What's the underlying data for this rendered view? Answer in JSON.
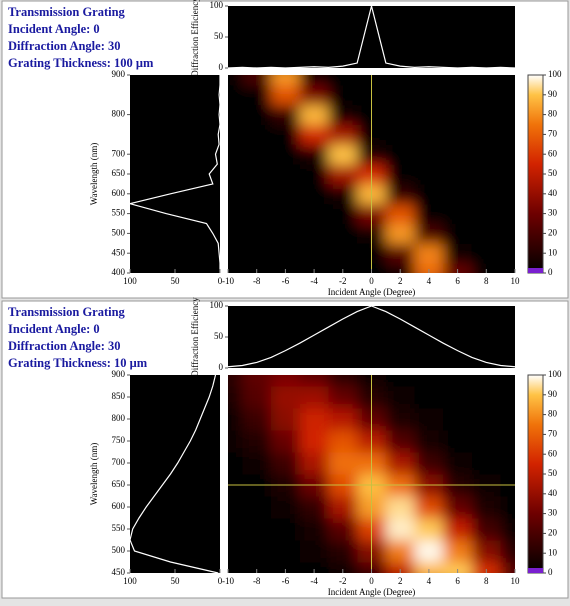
{
  "chart_data": [
    {
      "type": "heatmap",
      "annotations": [
        "Transmission Grating",
        "Incident Angle: 0",
        "Diffraction Angle: 30",
        "Grating Thickness: 100 μm"
      ],
      "xlabel": "Incident Angle (Degree)",
      "ylabel": "Wavelength (nm)",
      "x": [
        -10,
        -8,
        -6,
        -4,
        -2,
        0,
        2,
        4,
        6,
        8,
        10
      ],
      "y": [
        400,
        450,
        500,
        550,
        600,
        650,
        700,
        750,
        800,
        850,
        900
      ],
      "z": [
        [
          0,
          0,
          0,
          0,
          0,
          0,
          2,
          73,
          28,
          0,
          0
        ],
        [
          0,
          0,
          0,
          0,
          0,
          0,
          24,
          78,
          2,
          0,
          0
        ],
        [
          0,
          0,
          0,
          0,
          0,
          3,
          82,
          20,
          0,
          0,
          0
        ],
        [
          0,
          0,
          0,
          0,
          0,
          33,
          67,
          1,
          0,
          0,
          0
        ],
        [
          0,
          0,
          0,
          0,
          5,
          88,
          13,
          0,
          0,
          0,
          0
        ],
        [
          0,
          0,
          0,
          0,
          44,
          56,
          1,
          0,
          0,
          0,
          0
        ],
        [
          0,
          0,
          0,
          8,
          90,
          8,
          0,
          0,
          0,
          0,
          0
        ],
        [
          0,
          0,
          1,
          56,
          44,
          0,
          0,
          0,
          0,
          0,
          0
        ],
        [
          0,
          0,
          13,
          88,
          5,
          0,
          0,
          0,
          0,
          0,
          0
        ],
        [
          0,
          1,
          67,
          33,
          0,
          0,
          0,
          0,
          0,
          0,
          0
        ],
        [
          0,
          20,
          82,
          3,
          0,
          0,
          0,
          0,
          0,
          0,
          0
        ]
      ],
      "xlim": [
        -10,
        10
      ],
      "xticks": [
        -10,
        -8,
        -6,
        -4,
        -2,
        0,
        2,
        4,
        6,
        8,
        10
      ],
      "ylim": [
        400,
        900
      ],
      "yticks": [
        400,
        450,
        500,
        550,
        600,
        650,
        700,
        800,
        900
      ],
      "clim": [
        0,
        100
      ],
      "cticks": [
        0,
        10,
        20,
        30,
        40,
        50,
        60,
        70,
        80,
        90,
        100
      ],
      "crosshair_x": 0,
      "crosshair_color": "#c8c040",
      "top": {
        "ylabel": "Diffraction Efficiency",
        "color": "#ffffff",
        "x": [
          -10,
          -9,
          -8,
          -7,
          -6,
          -5,
          -4,
          -3,
          -2,
          -1,
          0,
          1,
          2,
          3,
          4,
          5,
          6,
          7,
          8,
          9,
          10
        ],
        "values": [
          0,
          1,
          0,
          1,
          0,
          1,
          2,
          1,
          3,
          8,
          100,
          8,
          3,
          1,
          2,
          1,
          0,
          1,
          0,
          1,
          0
        ],
        "ylim": [
          0,
          100
        ],
        "yticks": [
          0,
          50,
          100
        ]
      },
      "side": {
        "color": "#ffffff",
        "y": [
          400,
          425,
          450,
          475,
          500,
          525,
          550,
          575,
          600,
          625,
          650,
          675,
          700,
          725,
          750,
          775,
          800,
          825,
          850,
          875,
          900
        ],
        "values": [
          0,
          0,
          1,
          2,
          8,
          15,
          60,
          100,
          55,
          8,
          12,
          3,
          5,
          1,
          2,
          0,
          1,
          0,
          1,
          0,
          0
        ],
        "xlim": [
          100,
          0
        ],
        "xticks": [
          100,
          50,
          0
        ]
      }
    },
    {
      "type": "heatmap",
      "annotations": [
        "Transmission Grating",
        "Incident Angle: 0",
        "Diffraction Angle: 30",
        "Grating Thickness: 10 μm"
      ],
      "xlabel": "Incident Angle (Degree)",
      "ylabel": "Wavelength (nm)",
      "x": [
        -10,
        -8,
        -6,
        -4,
        -2,
        0,
        2,
        4,
        6,
        8,
        10
      ],
      "y": [
        450,
        500,
        550,
        600,
        650,
        700,
        750,
        800,
        850,
        900
      ],
      "z": [
        [
          0,
          0,
          0,
          0,
          4,
          17,
          50,
          87,
          91,
          58,
          23
        ],
        [
          0,
          0,
          0,
          2,
          10,
          36,
          77,
          99,
          77,
          36,
          10
        ],
        [
          0,
          0,
          1,
          6,
          24,
          62,
          97,
          91,
          52,
          18,
          4
        ],
        [
          0,
          0,
          3,
          14,
          45,
          83,
          94,
          65,
          27,
          7,
          1
        ],
        [
          0,
          1,
          8,
          29,
          65,
          89,
          74,
          37,
          11,
          2,
          0
        ],
        [
          0,
          4,
          17,
          45,
          74,
          74,
          45,
          17,
          4,
          0,
          0
        ],
        [
          2,
          9,
          28,
          55,
          67,
          49,
          22,
          6,
          1,
          0,
          0
        ],
        [
          4,
          16,
          37,
          54,
          48,
          26,
          8,
          2,
          0,
          0,
          0
        ],
        [
          8,
          23,
          40,
          42,
          27,
          11,
          3,
          0,
          0,
          0,
          0
        ],
        [
          12,
          26,
          33,
          26,
          12,
          3,
          1,
          0,
          0,
          0,
          0
        ]
      ],
      "xlim": [
        -10,
        10
      ],
      "xticks": [
        -10,
        -8,
        -6,
        -4,
        -2,
        0,
        2,
        4,
        6,
        8,
        10
      ],
      "ylim": [
        450,
        900
      ],
      "yticks": [
        450,
        500,
        550,
        600,
        650,
        700,
        750,
        800,
        850,
        900
      ],
      "clim": [
        0,
        100
      ],
      "cticks": [
        0,
        10,
        20,
        30,
        40,
        50,
        60,
        70,
        80,
        90,
        100
      ],
      "crosshair_x": 0,
      "crosshair_y": 650,
      "crosshair_color": "#c8c040",
      "top": {
        "ylabel": "Diffraction Efficiency",
        "color": "#ffffff",
        "x": [
          -10,
          -9,
          -8,
          -7,
          -6,
          -5,
          -4,
          -3,
          -2,
          -1,
          0,
          1,
          2,
          3,
          4,
          5,
          6,
          7,
          8,
          9,
          10
        ],
        "values": [
          2,
          4,
          9,
          17,
          28,
          40,
          53,
          66,
          79,
          91,
          100,
          91,
          79,
          66,
          53,
          40,
          28,
          17,
          9,
          4,
          2
        ],
        "ylim": [
          0,
          100
        ],
        "yticks": [
          0,
          50,
          100
        ]
      },
      "side": {
        "color": "#ffffff",
        "y": [
          450,
          475,
          500,
          525,
          550,
          575,
          600,
          625,
          650,
          675,
          700,
          725,
          750,
          775,
          800,
          825,
          850,
          875,
          900
        ],
        "values": [
          2,
          55,
          95,
          100,
          97,
          90,
          82,
          73,
          64,
          55,
          47,
          40,
          33,
          27,
          22,
          17,
          12,
          8,
          5
        ],
        "xlim": [
          100,
          0
        ],
        "xticks": [
          100,
          50,
          0
        ]
      }
    }
  ]
}
